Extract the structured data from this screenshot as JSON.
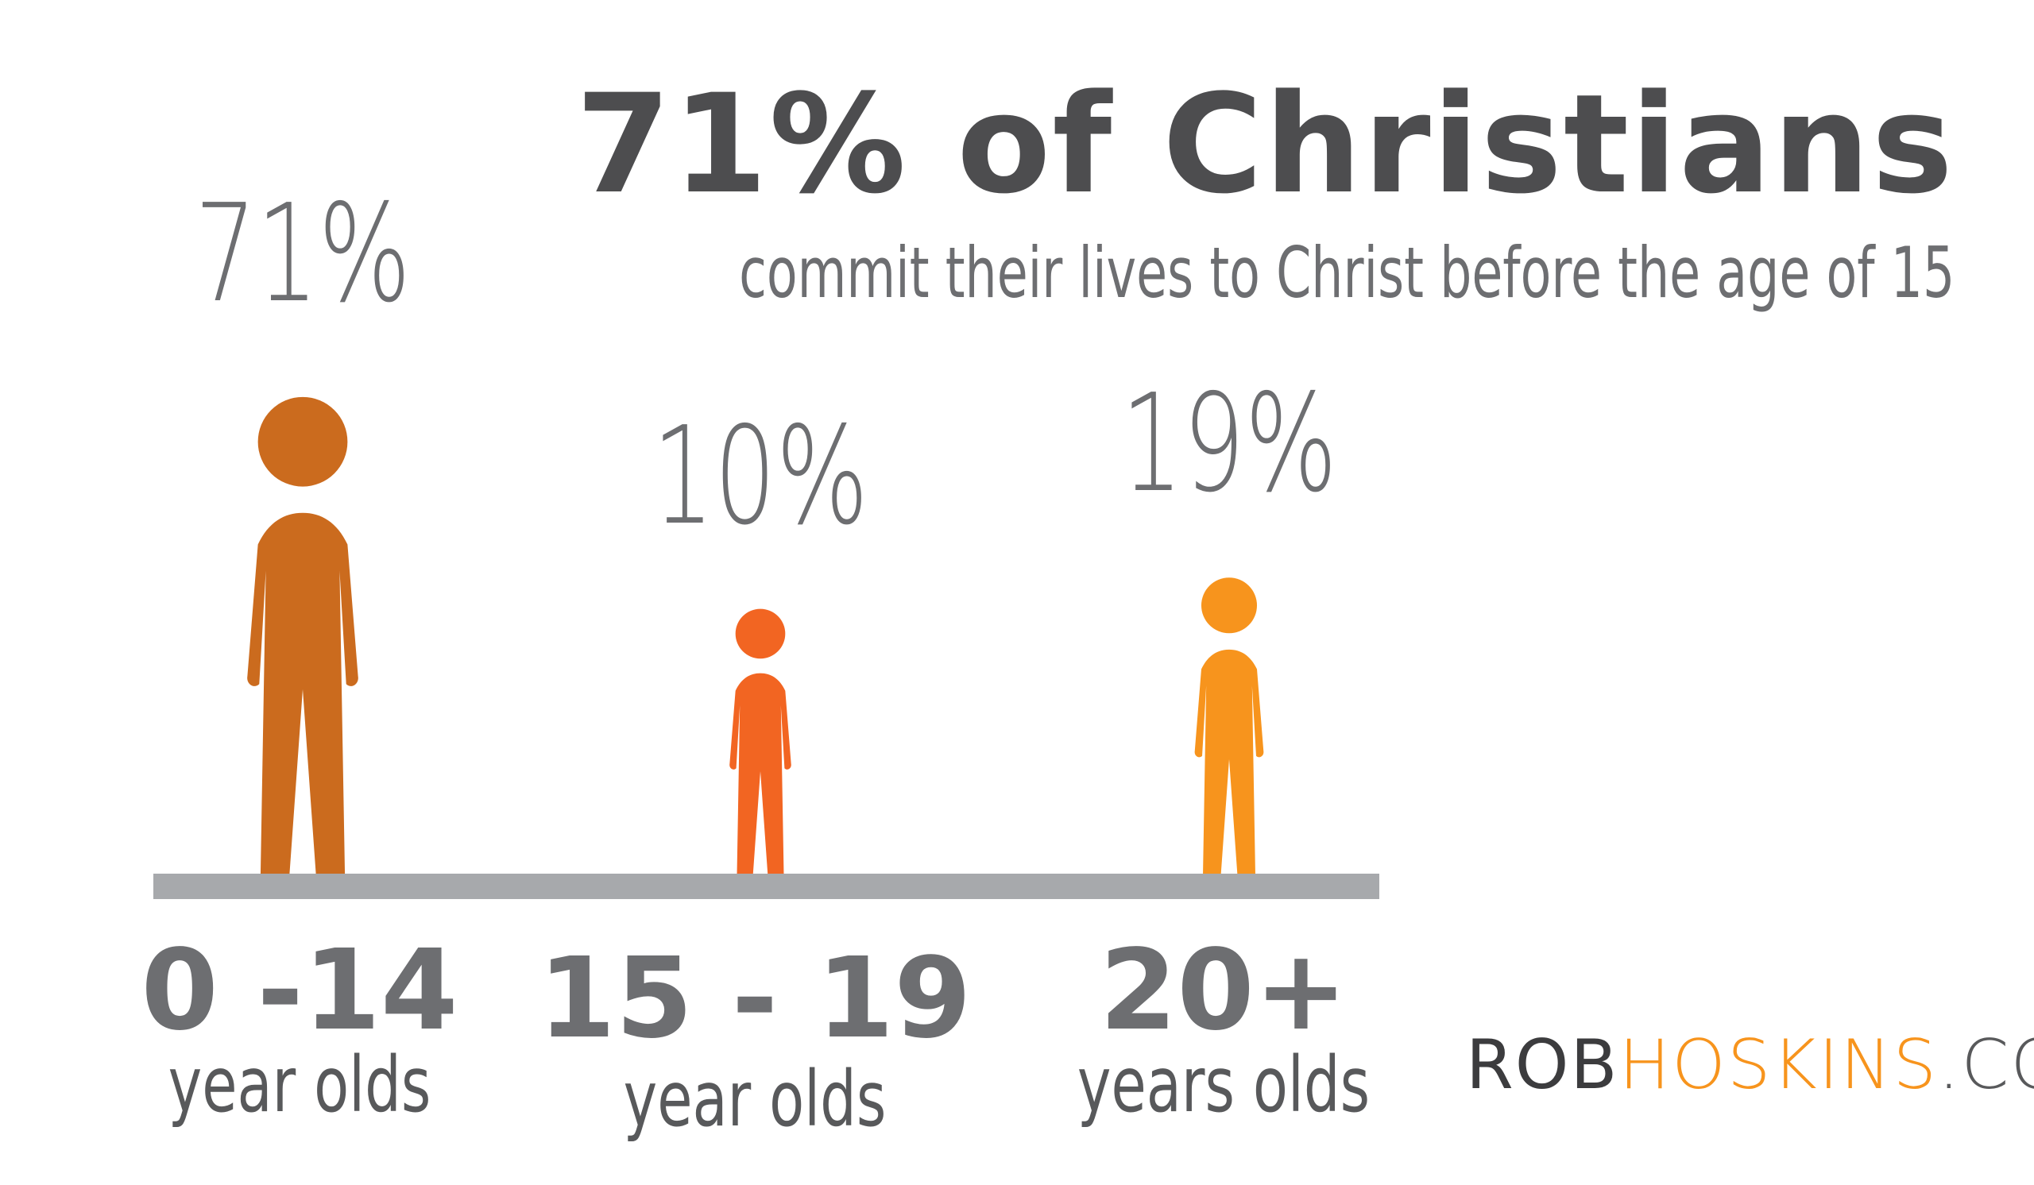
{
  "header": {
    "title": "71% of Christians",
    "subtitle": "commit their lives to Christ before the age of 15"
  },
  "chart_data": {
    "type": "bar",
    "categories": [
      "0 -14",
      "15 - 19",
      "20+"
    ],
    "category_units": [
      "year olds",
      "year olds",
      "years olds"
    ],
    "values": [
      71,
      10,
      19
    ],
    "value_labels": [
      "71%",
      "10%",
      "19%"
    ],
    "colors": [
      "#cb6b1e",
      "#f26522",
      "#f7941d"
    ],
    "baseline_color": "#a7a9ac",
    "ylim": [
      0,
      71
    ]
  },
  "branding": {
    "part1": "ROB",
    "part2": "HOSKINS",
    "part3": ".COM"
  }
}
